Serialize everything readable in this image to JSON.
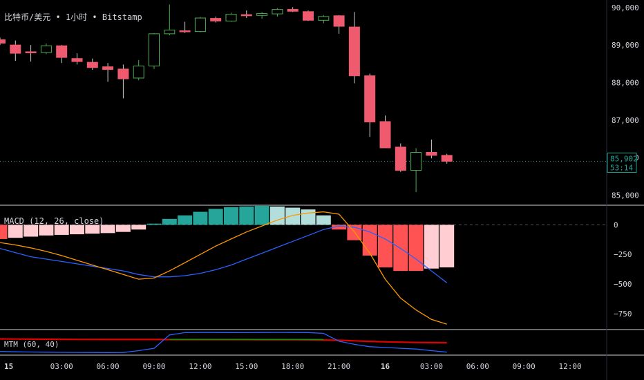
{
  "header": {
    "symbol": "比特币/美元",
    "sep1": "•",
    "interval": "1小时",
    "sep2": "•",
    "exchange": "Bitstamp"
  },
  "colors": {
    "up": "#4caf50",
    "down": "#f05a6e",
    "axis_text": "#d1d4dc",
    "price_line": "#26a69a",
    "macd_line": "#2962ff",
    "signal_line": "#ff9800",
    "hist_pos_strong": "#26a69a",
    "hist_pos_weak": "#b2dfdb",
    "hist_neg_strong": "#ff5252",
    "hist_neg_weak": "#ffcdd2",
    "mtm_red": "#e00000",
    "mtm_green": "#00a000",
    "mtm_blue": "#2962ff"
  },
  "chart_data": [
    {
      "type": "candlestick",
      "pane": "price",
      "y_ticks": [
        "90,000",
        "89,000",
        "88,000",
        "87,000",
        "86,000",
        "85,000"
      ],
      "y_tick_values": [
        90000,
        89000,
        88000,
        87000,
        86000,
        85000
      ],
      "ylim": [
        84750,
        90200
      ],
      "last_price_label": "85,902",
      "countdown_label": "53:14",
      "last_price": 85902,
      "x_ticks": [
        "15",
        "03:00",
        "06:00",
        "09:00",
        "12:00",
        "15:00",
        "18:00",
        "21:00",
        "16",
        "03:00",
        "06:00",
        "09:00",
        "12:00"
      ],
      "x_tick_index": [
        0,
        4,
        7,
        10,
        13,
        16,
        19,
        22,
        25,
        28,
        31,
        34,
        37
      ],
      "candles": [
        {
          "o": 89140,
          "h": 89200,
          "l": 89000,
          "c": 89050
        },
        {
          "o": 89000,
          "h": 89120,
          "l": 88580,
          "c": 88780
        },
        {
          "o": 88820,
          "h": 89000,
          "l": 88560,
          "c": 88810
        },
        {
          "o": 88800,
          "h": 89040,
          "l": 88760,
          "c": 88980
        },
        {
          "o": 88980,
          "h": 89000,
          "l": 88520,
          "c": 88670
        },
        {
          "o": 88640,
          "h": 88780,
          "l": 88480,
          "c": 88560
        },
        {
          "o": 88540,
          "h": 88640,
          "l": 88340,
          "c": 88400
        },
        {
          "o": 88420,
          "h": 88520,
          "l": 88020,
          "c": 88350
        },
        {
          "o": 88360,
          "h": 88480,
          "l": 87580,
          "c": 88100
        },
        {
          "o": 88120,
          "h": 88600,
          "l": 88060,
          "c": 88440
        },
        {
          "o": 88440,
          "h": 89320,
          "l": 88360,
          "c": 89300
        },
        {
          "o": 89300,
          "h": 90080,
          "l": 89260,
          "c": 89400
        },
        {
          "o": 89380,
          "h": 89620,
          "l": 89320,
          "c": 89360
        },
        {
          "o": 89360,
          "h": 89750,
          "l": 89340,
          "c": 89720
        },
        {
          "o": 89710,
          "h": 89760,
          "l": 89600,
          "c": 89640
        },
        {
          "o": 89640,
          "h": 89860,
          "l": 89620,
          "c": 89820
        },
        {
          "o": 89810,
          "h": 89920,
          "l": 89720,
          "c": 89780
        },
        {
          "o": 89790,
          "h": 89880,
          "l": 89700,
          "c": 89840
        },
        {
          "o": 89830,
          "h": 89980,
          "l": 89760,
          "c": 89950
        },
        {
          "o": 89950,
          "h": 90010,
          "l": 89880,
          "c": 89900
        },
        {
          "o": 89890,
          "h": 89920,
          "l": 89640,
          "c": 89660
        },
        {
          "o": 89660,
          "h": 89800,
          "l": 89580,
          "c": 89760
        },
        {
          "o": 89780,
          "h": 89800,
          "l": 89300,
          "c": 89500
        },
        {
          "o": 89480,
          "h": 89880,
          "l": 87980,
          "c": 88180
        },
        {
          "o": 88180,
          "h": 88240,
          "l": 86550,
          "c": 86950
        },
        {
          "o": 86960,
          "h": 87120,
          "l": 86250,
          "c": 86260
        },
        {
          "o": 86280,
          "h": 86380,
          "l": 85620,
          "c": 85660
        },
        {
          "o": 85660,
          "h": 86250,
          "l": 85080,
          "c": 86140
        },
        {
          "o": 86140,
          "h": 86480,
          "l": 85980,
          "c": 86060
        },
        {
          "o": 86060,
          "h": 86100,
          "l": 85840,
          "c": 85902
        }
      ]
    },
    {
      "type": "bar+line",
      "pane": "macd",
      "label": "MACD (12, 26, close)",
      "y_ticks": [
        "0",
        "−250",
        "−500",
        "−750"
      ],
      "y_tick_values": [
        0,
        -250,
        -500,
        -750
      ],
      "ylim": [
        -880,
        160
      ],
      "histogram": [
        -120,
        -110,
        -100,
        -90,
        -85,
        -80,
        -75,
        -70,
        -60,
        -40,
        10,
        50,
        80,
        110,
        135,
        150,
        155,
        160,
        155,
        145,
        130,
        80,
        -40,
        -130,
        -260,
        -360,
        -390,
        -390,
        -370,
        -360
      ],
      "macd": [
        -200,
        -235,
        -270,
        -290,
        -310,
        -330,
        -350,
        -370,
        -390,
        -420,
        -440,
        -440,
        -430,
        -410,
        -380,
        -340,
        -290,
        -240,
        -190,
        -140,
        -90,
        -40,
        -10,
        -20,
        -60,
        -120,
        -200,
        -290,
        -390,
        -490
      ],
      "signal": [
        -150,
        -170,
        -195,
        -225,
        -260,
        -300,
        -340,
        -380,
        -420,
        -460,
        -450,
        -390,
        -320,
        -250,
        -180,
        -120,
        -60,
        -10,
        40,
        80,
        100,
        110,
        90,
        -60,
        -240,
        -460,
        -620,
        -720,
        -800,
        -840
      ]
    },
    {
      "type": "line",
      "pane": "mtm",
      "label": "MTM (60, 40)",
      "ylim": [
        -200,
        100
      ],
      "mtm": [
        -170,
        -175,
        -178,
        -180,
        -182,
        -183,
        -184,
        -185,
        -184,
        -160,
        -130,
        40,
        70,
        72,
        72,
        71,
        70,
        72,
        73,
        72,
        71,
        60,
        -40,
        -80,
        -110,
        -120,
        -130,
        -140,
        -160,
        -180
      ],
      "red_line": [
        -10,
        -12,
        -14,
        -15,
        -16,
        -17,
        -17,
        -18,
        -18,
        -18,
        -18,
        -19,
        -19,
        -19,
        -19,
        -19,
        -19,
        -20,
        -20,
        -20,
        -22,
        -24,
        -28,
        -35,
        -42,
        -48,
        -52,
        -56,
        -58,
        -60
      ],
      "green_line": [
        null,
        null,
        null,
        null,
        null,
        null,
        null,
        null,
        null,
        null,
        null,
        -18,
        -18,
        -18,
        -18,
        -18,
        -18,
        -18,
        -18,
        -18,
        -18,
        -18,
        null,
        null,
        null,
        null,
        null,
        null,
        null,
        null
      ]
    }
  ]
}
